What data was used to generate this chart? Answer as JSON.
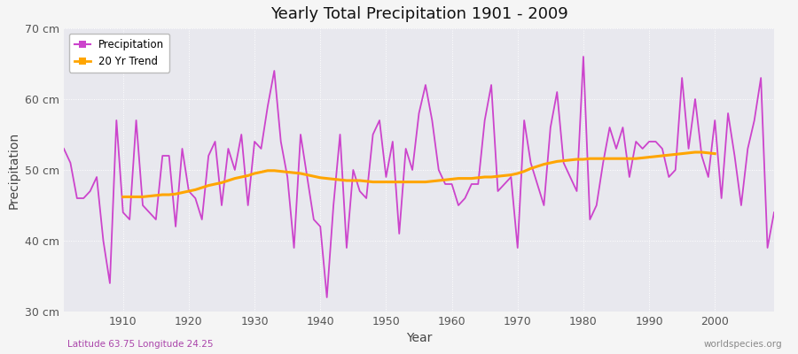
{
  "title": "Yearly Total Precipitation 1901 - 2009",
  "xlabel": "Year",
  "ylabel": "Precipitation",
  "subtitle_left": "Latitude 63.75 Longitude 24.25",
  "subtitle_right": "worldspecies.org",
  "ylim": [
    30,
    70
  ],
  "yticks": [
    30,
    40,
    50,
    60,
    70
  ],
  "ytick_labels": [
    "30 cm",
    "40 cm",
    "50 cm",
    "60 cm",
    "70 cm"
  ],
  "xlim": [
    1901,
    2009
  ],
  "precip_color": "#CC44CC",
  "trend_color": "#FFA500",
  "bg_color": "#E8E8EE",
  "fig_bg": "#F5F5F5",
  "years": [
    1901,
    1902,
    1903,
    1904,
    1905,
    1906,
    1907,
    1908,
    1909,
    1910,
    1911,
    1912,
    1913,
    1914,
    1915,
    1916,
    1917,
    1918,
    1919,
    1920,
    1921,
    1922,
    1923,
    1924,
    1925,
    1926,
    1927,
    1928,
    1929,
    1930,
    1931,
    1932,
    1933,
    1934,
    1935,
    1936,
    1937,
    1938,
    1939,
    1940,
    1941,
    1942,
    1943,
    1944,
    1945,
    1946,
    1947,
    1948,
    1949,
    1950,
    1951,
    1952,
    1953,
    1954,
    1955,
    1956,
    1957,
    1958,
    1959,
    1960,
    1961,
    1962,
    1963,
    1964,
    1965,
    1966,
    1967,
    1968,
    1969,
    1970,
    1971,
    1972,
    1973,
    1974,
    1975,
    1976,
    1977,
    1978,
    1979,
    1980,
    1981,
    1982,
    1983,
    1984,
    1985,
    1986,
    1987,
    1988,
    1989,
    1990,
    1991,
    1992,
    1993,
    1994,
    1995,
    1996,
    1997,
    1998,
    1999,
    2000,
    2001,
    2002,
    2003,
    2004,
    2005,
    2006,
    2007,
    2008,
    2009
  ],
  "precipitation": [
    53,
    51,
    46,
    46,
    47,
    49,
    40,
    34,
    57,
    44,
    43,
    57,
    45,
    44,
    43,
    52,
    52,
    42,
    53,
    47,
    46,
    43,
    52,
    54,
    45,
    53,
    50,
    55,
    45,
    54,
    53,
    59,
    64,
    54,
    49,
    39,
    55,
    49,
    43,
    42,
    32,
    45,
    55,
    39,
    50,
    47,
    46,
    55,
    57,
    49,
    54,
    41,
    53,
    50,
    58,
    62,
    57,
    50,
    48,
    48,
    45,
    46,
    48,
    48,
    57,
    62,
    47,
    48,
    49,
    39,
    57,
    51,
    48,
    45,
    56,
    61,
    51,
    49,
    47,
    66,
    43,
    45,
    51,
    56,
    53,
    56,
    49,
    54,
    53,
    54,
    54,
    53,
    49,
    50,
    63,
    53,
    60,
    52,
    49,
    57,
    46,
    58,
    52,
    45,
    53,
    57,
    63,
    39,
    44
  ],
  "trend_years": [
    1910,
    1911,
    1912,
    1913,
    1914,
    1915,
    1916,
    1917,
    1918,
    1919,
    1920,
    1921,
    1922,
    1923,
    1924,
    1925,
    1926,
    1927,
    1928,
    1929,
    1930,
    1931,
    1932,
    1933,
    1934,
    1935,
    1936,
    1937,
    1938,
    1939,
    1940,
    1941,
    1942,
    1943,
    1944,
    1945,
    1946,
    1947,
    1948,
    1949,
    1950,
    1951,
    1952,
    1953,
    1954,
    1955,
    1956,
    1957,
    1958,
    1959,
    1960,
    1961,
    1962,
    1963,
    1964,
    1965,
    1966,
    1967,
    1968,
    1969,
    1970,
    1971,
    1972,
    1973,
    1974,
    1975,
    1976,
    1977,
    1978,
    1979,
    1980,
    1981,
    1982,
    1983,
    1984,
    1985,
    1986,
    1987,
    1988,
    1989,
    1990,
    1991,
    1992,
    1993,
    1994,
    1995,
    1996,
    1997,
    1998,
    1999,
    2000
  ],
  "trend": [
    46.2,
    46.2,
    46.2,
    46.2,
    46.3,
    46.4,
    46.5,
    46.5,
    46.6,
    46.8,
    47.0,
    47.2,
    47.5,
    47.8,
    48.0,
    48.2,
    48.5,
    48.8,
    49.0,
    49.2,
    49.5,
    49.7,
    49.9,
    49.9,
    49.8,
    49.7,
    49.6,
    49.5,
    49.3,
    49.1,
    48.9,
    48.8,
    48.7,
    48.6,
    48.5,
    48.5,
    48.5,
    48.4,
    48.3,
    48.3,
    48.3,
    48.3,
    48.3,
    48.3,
    48.3,
    48.3,
    48.3,
    48.4,
    48.5,
    48.6,
    48.7,
    48.8,
    48.8,
    48.8,
    48.9,
    49.0,
    49.0,
    49.1,
    49.2,
    49.3,
    49.5,
    49.8,
    50.2,
    50.5,
    50.8,
    51.0,
    51.2,
    51.3,
    51.4,
    51.5,
    51.5,
    51.6,
    51.6,
    51.6,
    51.6,
    51.6,
    51.6,
    51.6,
    51.6,
    51.7,
    51.8,
    51.9,
    52.0,
    52.1,
    52.2,
    52.3,
    52.4,
    52.5,
    52.5,
    52.4,
    52.3
  ]
}
